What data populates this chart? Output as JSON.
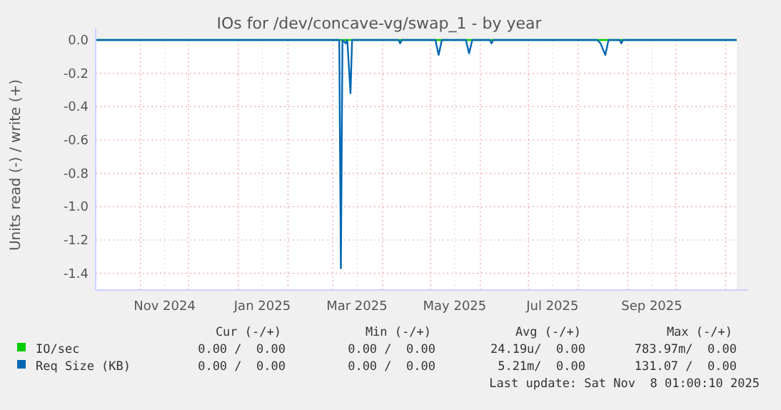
{
  "chart_data": {
    "type": "line",
    "title": "IOs for /dev/concave-vg/swap_1 - by year",
    "ylabel": "Units read (-) / write (+)",
    "xlim": [
      "2024-10-04",
      "2025-11-08"
    ],
    "ylim": [
      -1.5,
      0
    ],
    "yticks": [
      {
        "value": 0,
        "label": "0.0"
      },
      -0.2,
      -0.4,
      -0.6,
      -0.8,
      {
        "value": -1,
        "label": "-1.0"
      },
      -1.2,
      -1.4
    ],
    "xticks": [
      {
        "value": "2024-11-01",
        "label": null
      },
      {
        "value": "2024-11-16",
        "label": "Nov 2024"
      },
      {
        "value": "2024-12-01",
        "label": null
      },
      {
        "value": "2025-01-01",
        "label": null
      },
      {
        "value": "2025-01-16",
        "label": "Jan 2025"
      },
      {
        "value": "2025-02-01",
        "label": null
      },
      {
        "value": "2025-03-01",
        "label": null
      },
      {
        "value": "2025-03-16",
        "label": "Mar 2025"
      },
      {
        "value": "2025-04-01",
        "label": null
      },
      {
        "value": "2025-05-01",
        "label": null
      },
      {
        "value": "2025-05-16",
        "label": "May 2025"
      },
      {
        "value": "2025-06-01",
        "label": null
      },
      {
        "value": "2025-07-01",
        "label": null
      },
      {
        "value": "2025-07-16",
        "label": "Jul 2025"
      },
      {
        "value": "2025-08-01",
        "label": null
      },
      {
        "value": "2025-09-01",
        "label": null
      },
      {
        "value": "2025-09-16",
        "label": "Sep 2025"
      },
      {
        "value": "2025-10-01",
        "label": null
      },
      {
        "value": "2025-11-01",
        "label": null
      }
    ],
    "grid": true,
    "legend": "bottom left",
    "line_style": "solid",
    "marker": "none",
    "series": [
      {
        "name": "IO/sec",
        "color": "#00cc00",
        "x": [
          "2024-10-04",
          "2025-11-08"
        ],
        "values": [
          0,
          0
        ]
      },
      {
        "name": "Req Size (KB)",
        "color": "#0066b3",
        "x": [
          "2024-10-04",
          "2025-03-04",
          "2025-03-05",
          "2025-03-06",
          "2025-03-07",
          "2025-03-09",
          "2025-03-10",
          "2025-03-12",
          "2025-03-13",
          "2025-04-11",
          "2025-04-12",
          "2025-04-13",
          "2025-05-04",
          "2025-05-06",
          "2025-05-08",
          "2025-05-23",
          "2025-05-25",
          "2025-05-27",
          "2025-06-07",
          "2025-06-08",
          "2025-06-09",
          "2025-08-13",
          "2025-08-15",
          "2025-08-18",
          "2025-08-20",
          "2025-08-27",
          "2025-08-28",
          "2025-08-29",
          "2025-11-08"
        ],
        "values": [
          0,
          0,
          0,
          -1.37,
          0,
          -0.02,
          0,
          -0.32,
          0,
          0,
          -0.02,
          0,
          0,
          -0.09,
          0,
          0,
          -0.08,
          0,
          0,
          -0.02,
          0,
          0,
          -0.02,
          -0.09,
          0,
          0,
          -0.02,
          0,
          0
        ]
      }
    ],
    "annotations": [
      "Cur (-/+)",
      "Min (-/+)",
      "Avg (-/+)",
      "Max (-/+)",
      "0.00 /  0.00",
      "0.00 /  0.00",
      "24.19u/  0.00",
      "783.97m/  0.00",
      "0.00 /  0.00",
      "0.00 /  0.00",
      "5.21m/  0.00",
      "131.07 /  0.00",
      "Last update: Sat Nov  8 01:00:10 2025"
    ]
  }
}
